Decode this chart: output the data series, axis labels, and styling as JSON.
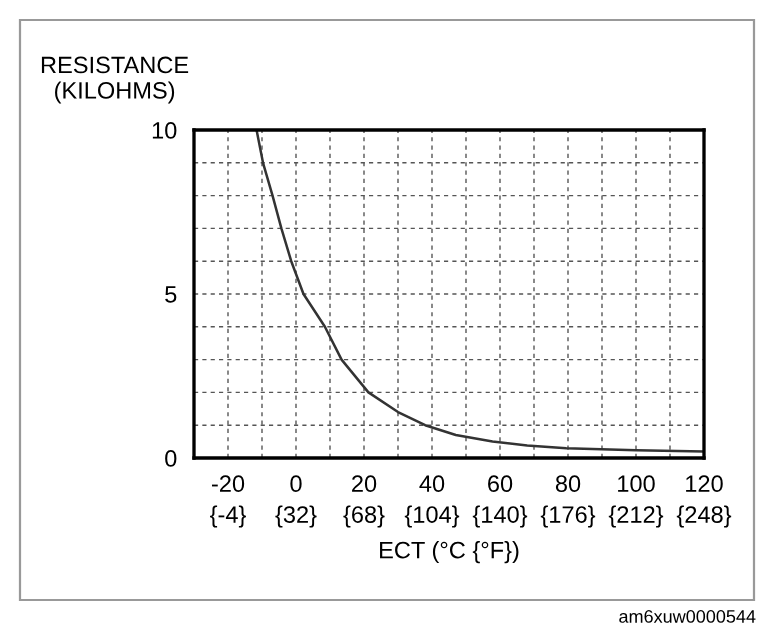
{
  "chart_data": {
    "type": "line",
    "ylabel": "RESISTANCE\n(KILOHMS)",
    "xlabel": "ECT (°C {°F})",
    "series": [
      {
        "color": "#333333",
        "x": [
          -11.6,
          -9.7,
          -6.9,
          -4.3,
          -1.4,
          2.2,
          8.5,
          13.4,
          21.3,
          30,
          38,
          47,
          57.8,
          68,
          79.5,
          100,
          120
        ],
        "values": [
          10,
          9,
          8,
          7,
          6,
          5,
          4,
          3,
          2,
          1.4,
          1,
          0.7,
          0.5,
          0.38,
          0.3,
          0.24,
          0.2
        ]
      }
    ],
    "xlim": [
      -30,
      120
    ],
    "ylim": [
      0,
      10
    ],
    "xticks": [
      -20,
      0,
      20,
      40,
      60,
      80,
      100,
      120
    ],
    "x2lim": [
      -22,
      248
    ],
    "x2ticks": [
      {
        "value": -4,
        "label": "{-4}"
      },
      {
        "value": 32,
        "label": "{32}"
      },
      {
        "value": 68,
        "label": "{68}"
      },
      {
        "value": 104,
        "label": "{104}"
      },
      {
        "value": 140,
        "label": "{140}"
      },
      {
        "value": 176,
        "label": "{176}"
      },
      {
        "value": 212,
        "label": "{212}"
      },
      {
        "value": 248,
        "label": "{248}"
      }
    ],
    "yticks": [
      0,
      5,
      10
    ],
    "grid": true,
    "line_style": "solid",
    "marker": "none",
    "annotations": [
      "am6xuw0000544"
    ]
  }
}
